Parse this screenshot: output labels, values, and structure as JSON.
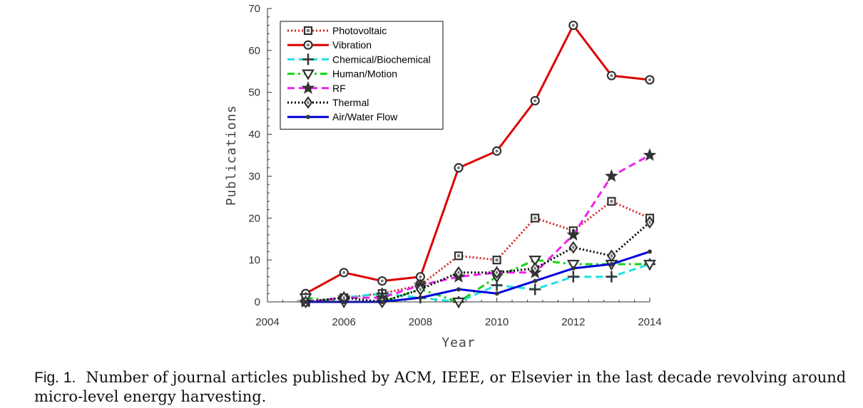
{
  "caption": {
    "label": "Fig. 1.",
    "text": "Number of journal articles published by ACM, IEEE, or Elsevier in the last decade revolving around micro-level energy harvesting."
  },
  "chart_data": {
    "type": "line",
    "xlabel": "Year",
    "ylabel": "Publications",
    "xlim": [
      2004,
      2014
    ],
    "ylim": [
      0,
      70
    ],
    "xticks": [
      2004,
      2006,
      2008,
      2010,
      2012,
      2014
    ],
    "yticks": [
      0,
      10,
      20,
      30,
      40,
      50,
      60,
      70
    ],
    "legend_position": "top-left",
    "x": [
      2005,
      2006,
      2007,
      2008,
      2009,
      2010,
      2011,
      2012,
      2013,
      2014
    ],
    "series": [
      {
        "name": "Photovoltaic",
        "color": "#d62020",
        "dash": "dotted",
        "marker": "square",
        "values": [
          0,
          1,
          2,
          4,
          11,
          10,
          20,
          17,
          24,
          20
        ]
      },
      {
        "name": "Vibration",
        "color": "#dd0000",
        "dash": "solid",
        "marker": "circle",
        "values": [
          2,
          7,
          5,
          6,
          32,
          36,
          48,
          66,
          54,
          53
        ]
      },
      {
        "name": "Chemical/Biochemical",
        "color": "#22e0e0",
        "dash": "dashed",
        "marker": "plus",
        "values": [
          0,
          1,
          2,
          1,
          0,
          4,
          3,
          6,
          6,
          9
        ]
      },
      {
        "name": "Human/Motion",
        "color": "#16d216",
        "dash": "dashdot",
        "marker": "triangle-down",
        "values": [
          1,
          0,
          0,
          3,
          0,
          6,
          10,
          9,
          9,
          9
        ]
      },
      {
        "name": "RF",
        "color": "#ee22ee",
        "dash": "dashed",
        "marker": "star",
        "values": [
          0,
          1,
          1,
          4,
          6,
          7,
          7,
          16,
          30,
          35
        ]
      },
      {
        "name": "Thermal",
        "color": "#000000",
        "dash": "dotted",
        "marker": "diamond",
        "values": [
          0,
          1,
          0,
          3,
          7,
          7,
          8,
          13,
          11,
          19
        ]
      },
      {
        "name": "Air/Water Flow",
        "color": "#0000dd",
        "dash": "solid",
        "marker": "dot",
        "values": [
          0,
          0,
          0,
          1,
          3,
          2,
          5,
          8,
          9,
          12
        ]
      }
    ]
  }
}
